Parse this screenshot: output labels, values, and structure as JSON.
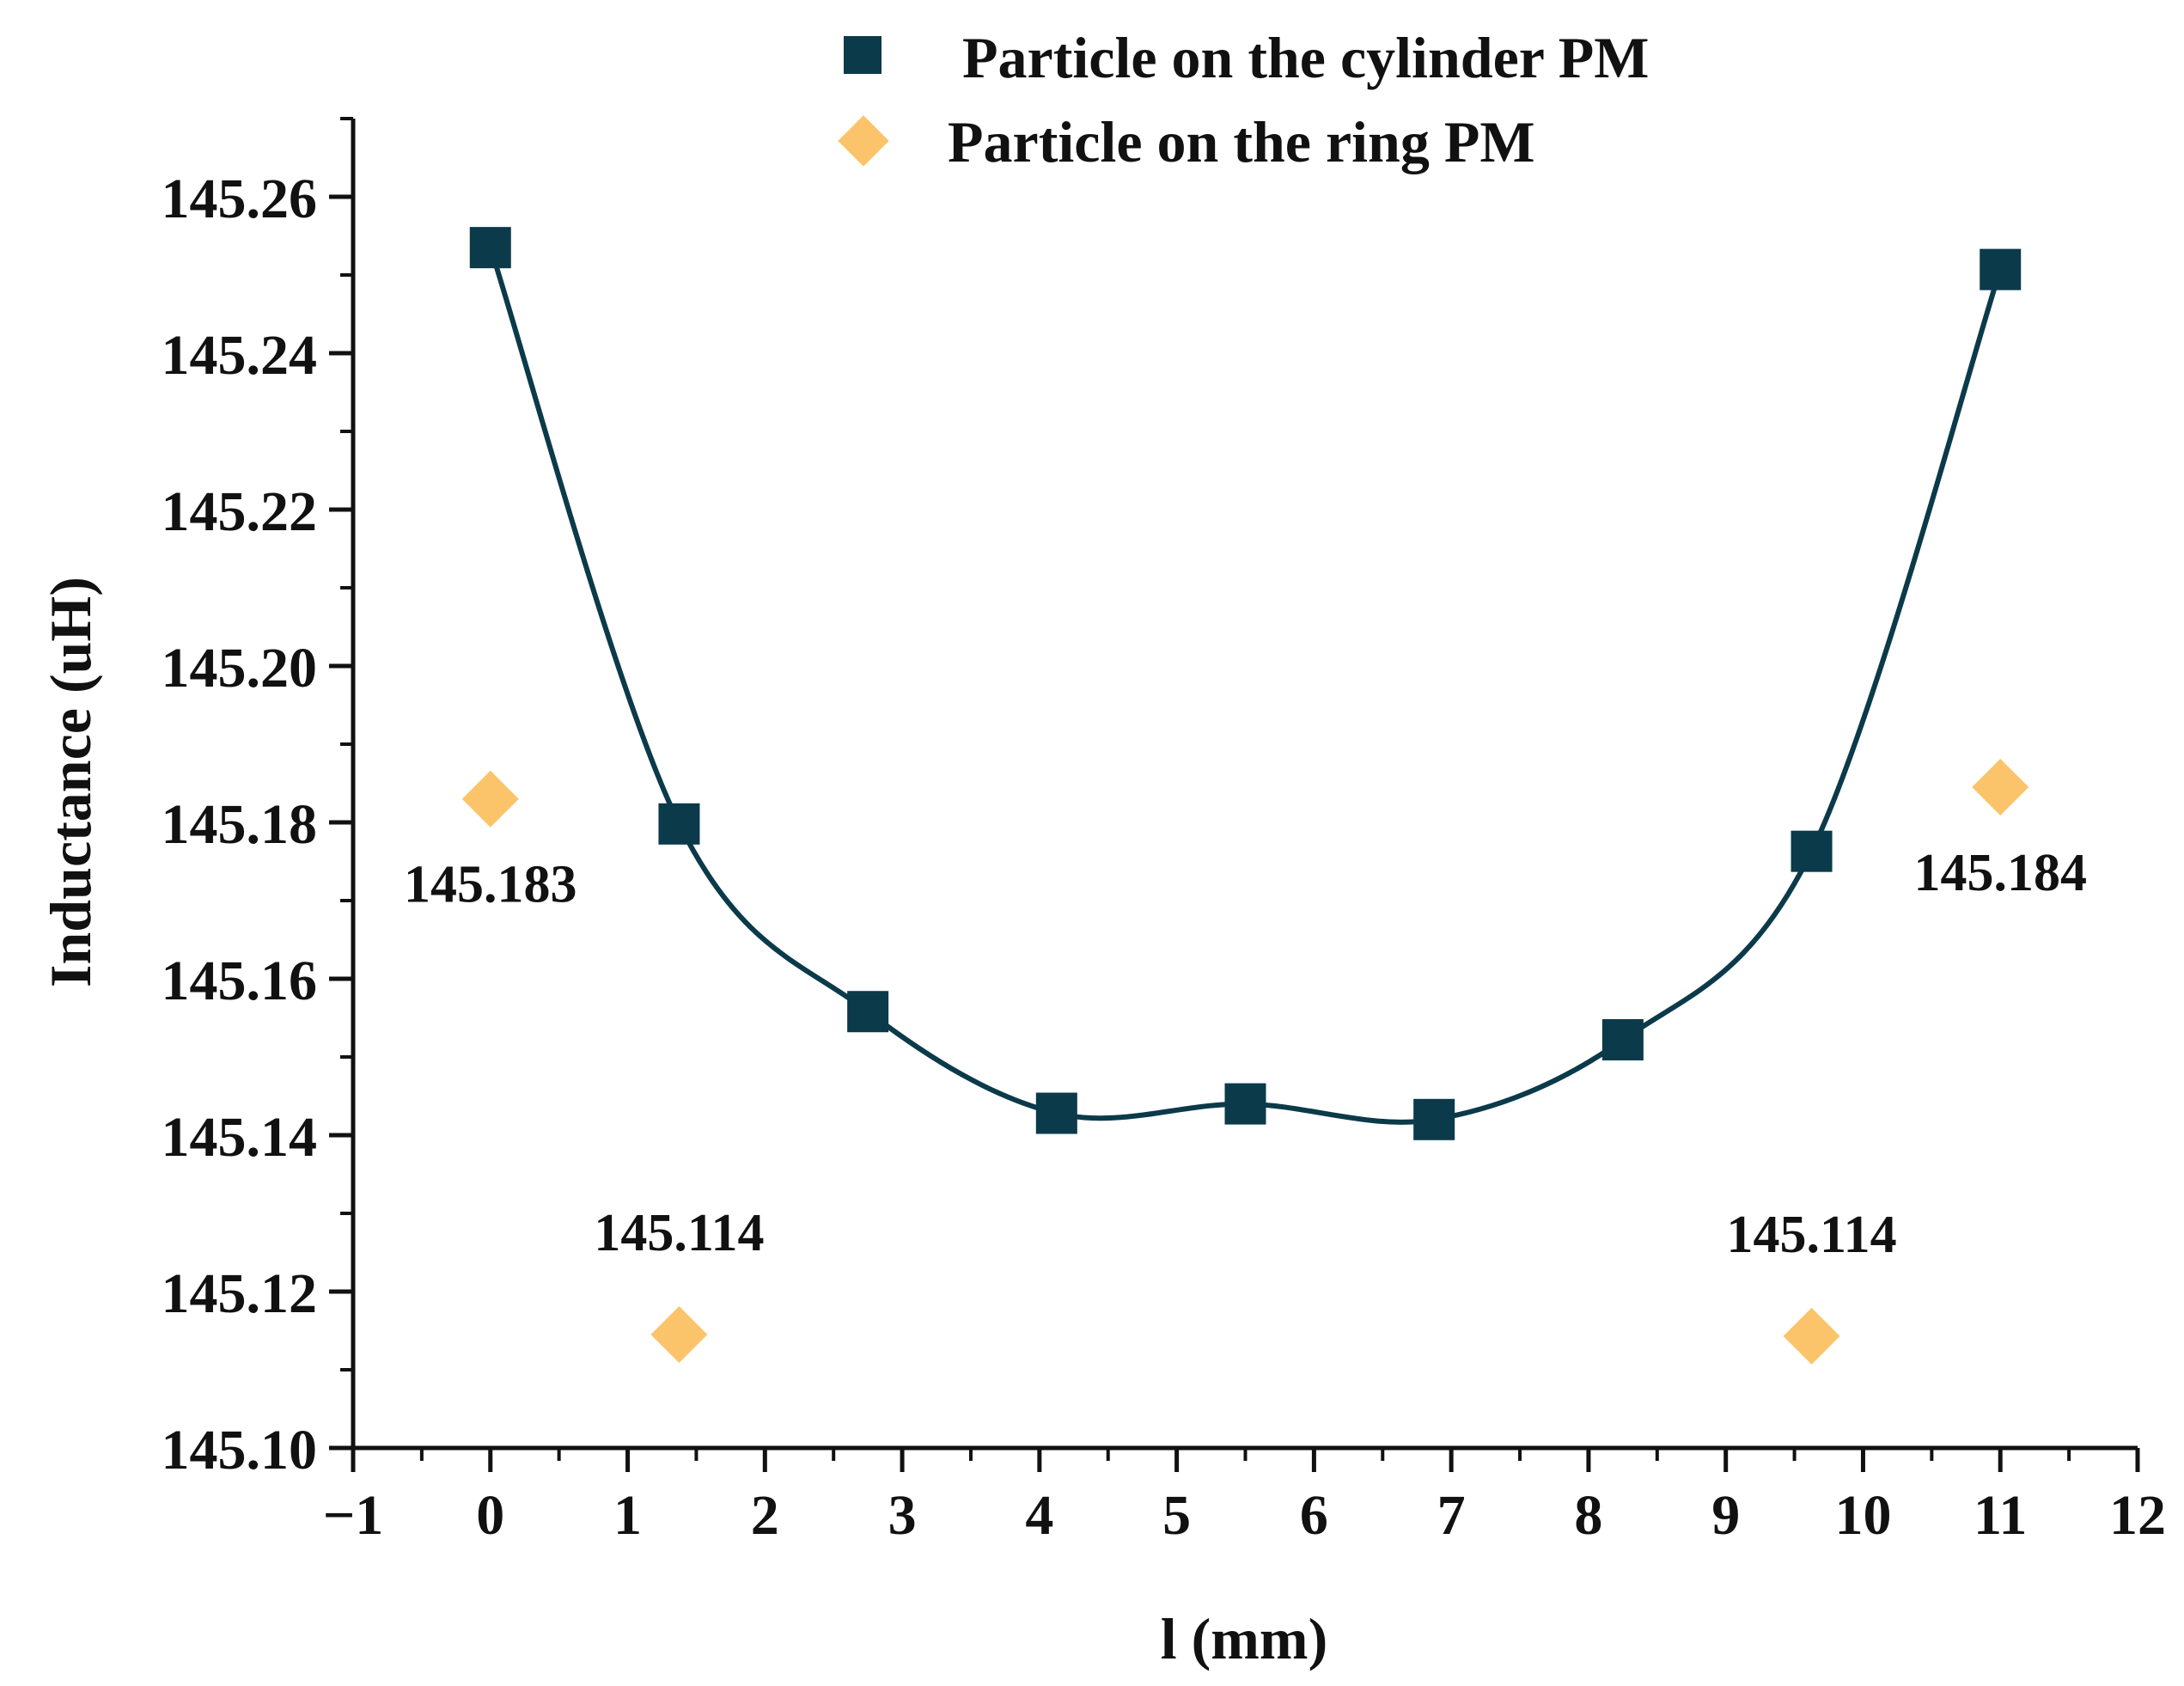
{
  "chart_data": {
    "type": "scatter",
    "title": "",
    "xlabel": "l (mm)",
    "ylabel": "Inductance (uH)",
    "xlim": [
      -1,
      12
    ],
    "ylim": [
      145.1,
      145.27
    ],
    "grid": false,
    "legend_position": "top-center",
    "x_ticks": [
      "−1",
      "0",
      "1",
      "2",
      "3",
      "4",
      "5",
      "6",
      "7",
      "8",
      "9",
      "10",
      "11",
      "12"
    ],
    "y_ticks": [
      "145.10",
      "145.12",
      "145.14",
      "145.16",
      "145.18",
      "145.20",
      "145.22",
      "145.24",
      "145.26"
    ],
    "series": [
      {
        "name": "Particle on the cylinder PM",
        "marker": "square",
        "color": "#0b3a4a",
        "fit_line": true,
        "x": [
          0,
          1.375,
          2.75,
          4.125,
          5.5,
          6.875,
          8.25,
          9.625,
          11
        ],
        "y": [
          145.2535,
          145.1798,
          145.1558,
          145.1428,
          145.144,
          145.142,
          145.1522,
          145.1763,
          145.2507
        ]
      },
      {
        "name": "Particle on the ring PM",
        "marker": "diamond",
        "color": "#fbc46a",
        "fit_line": false,
        "x": [
          0,
          1.375,
          9.625,
          11
        ],
        "y": [
          145.183,
          145.1145,
          145.1143,
          145.1845
        ]
      }
    ],
    "annotations": [
      {
        "text": "145.183",
        "x": 0,
        "y": 145.183,
        "placement": "below"
      },
      {
        "text": "145.114",
        "x": 1.375,
        "y": 145.1145,
        "placement": "above"
      },
      {
        "text": "145.114",
        "x": 9.625,
        "y": 145.1143,
        "placement": "above"
      },
      {
        "text": "145.184",
        "x": 11,
        "y": 145.1845,
        "placement": "below"
      }
    ]
  }
}
